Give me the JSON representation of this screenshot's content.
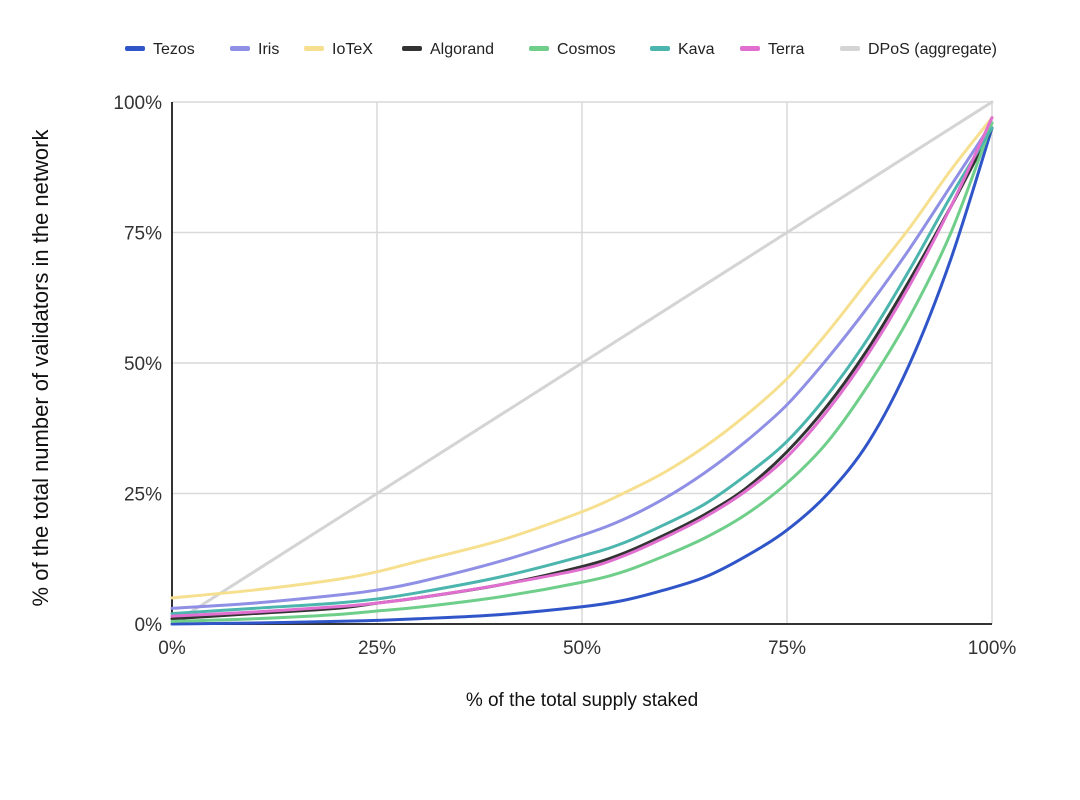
{
  "chart_data": {
    "type": "line",
    "title": "",
    "xlabel": "% of the total supply staked",
    "ylabel": "% of the total number of validators in the network",
    "xlim": [
      0,
      100
    ],
    "ylim": [
      0,
      100
    ],
    "x_ticks": [
      "0%",
      "25%",
      "50%",
      "75%",
      "100%"
    ],
    "y_ticks": [
      "0%",
      "25%",
      "50%",
      "75%",
      "100%"
    ],
    "grid": true,
    "legend_position": "top",
    "x": [
      0,
      10,
      20,
      25,
      30,
      40,
      50,
      55,
      60,
      65,
      70,
      75,
      80,
      85,
      90,
      95,
      100
    ],
    "series": [
      {
        "name": "Tezos",
        "color": "#2f55c9",
        "values": [
          0,
          0.2,
          0.5,
          0.7,
          1,
          1.8,
          3.3,
          4.5,
          6.5,
          9,
          13,
          18,
          25,
          35,
          50,
          70,
          95
        ]
      },
      {
        "name": "Iris",
        "color": "#8f8fe5",
        "values": [
          3,
          4,
          5.5,
          6.5,
          8,
          12,
          17,
          20,
          24,
          29,
          35,
          42,
          51,
          61,
          72,
          84,
          96
        ]
      },
      {
        "name": "IoTeX",
        "color": "#f6e08f",
        "values": [
          5,
          6.5,
          8.5,
          10,
          12,
          16,
          21.5,
          25,
          29,
          34,
          40,
          47,
          56,
          66,
          76,
          87,
          97
        ]
      },
      {
        "name": "Algorand",
        "color": "#333333",
        "values": [
          1,
          2,
          3,
          4,
          5,
          7.5,
          11,
          13.5,
          17,
          21,
          26,
          33,
          42,
          53,
          66,
          80,
          95
        ]
      },
      {
        "name": "Cosmos",
        "color": "#6fcf8a",
        "values": [
          0.5,
          1,
          1.8,
          2.5,
          3.2,
          5.2,
          8,
          10,
          13,
          16.5,
          21,
          27,
          35,
          46,
          59,
          75,
          96
        ]
      },
      {
        "name": "Kava",
        "color": "#4bb5ae",
        "values": [
          2,
          3,
          4,
          4.8,
          6,
          9,
          13,
          15.5,
          19,
          23,
          28.5,
          35,
          44,
          55,
          68,
          82,
          95
        ]
      },
      {
        "name": "Terra",
        "color": "#e06fcf",
        "values": [
          1.5,
          2.3,
          3.3,
          4,
          5,
          7.5,
          10.5,
          13,
          16.5,
          20.5,
          25.5,
          32,
          41,
          52,
          65,
          80,
          97
        ]
      },
      {
        "name": "DPoS (aggregate)",
        "color": "#d4d4d4",
        "values": [
          0,
          10,
          20,
          25,
          30,
          40,
          50,
          55,
          60,
          65,
          70,
          75,
          80,
          85,
          90,
          95,
          100
        ]
      }
    ]
  }
}
